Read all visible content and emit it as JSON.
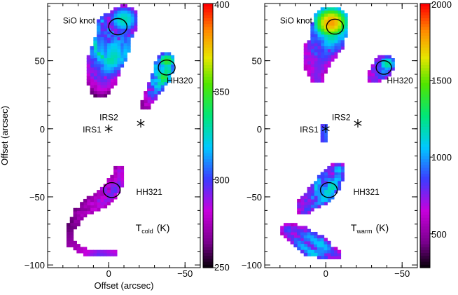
{
  "chart_data": [
    {
      "type": "heatmap",
      "annotation": "T_cold (K)",
      "annotation_main": "T",
      "annotation_sub": "cold",
      "annotation_unit": "(K)",
      "xlabel": "Offset (arcsec)",
      "ylabel": "Offset (arcsec)",
      "x_reversed": true,
      "xlim": [
        40,
        -60
      ],
      "ylim": [
        -102,
        92
      ],
      "x_ticks": [
        0,
        -50
      ],
      "y_ticks": [
        50,
        0,
        -50,
        -100
      ],
      "colorbar": {
        "min": 250,
        "max": 400,
        "ticks": [
          400,
          350,
          300,
          250
        ]
      },
      "labels": [
        {
          "text": "SiO knot",
          "x": 30,
          "y": 80
        },
        {
          "text": "HH320",
          "x": -38,
          "y": 36
        },
        {
          "text": "IRS2",
          "x": 6,
          "y": 9
        },
        {
          "text": "IRS1",
          "x": 17,
          "y": 0
        },
        {
          "text": "HH321",
          "x": -18,
          "y": -46
        }
      ],
      "stars": [
        {
          "name": "IRS1",
          "x": 0,
          "y": 0
        },
        {
          "name": "IRS2",
          "x": -21,
          "y": 4
        }
      ],
      "circles": [
        {
          "x": -6,
          "y": 75,
          "r": 6
        },
        {
          "x": -38,
          "y": 45,
          "r": 5.5
        },
        {
          "x": -2,
          "y": -45,
          "r": 5.5
        }
      ],
      "regions": [
        {
          "name": "SiO knot lobe",
          "spine": [
            [
              -10,
              80
            ],
            [
              -4,
              72
            ],
            [
              -2,
              60
            ],
            [
              2,
              48
            ],
            [
              4,
              36
            ],
            [
              6,
              28
            ]
          ],
          "width": [
            10,
            12,
            12,
            11,
            9,
            5
          ],
          "values": [
            330,
            360,
            380,
            330,
            300,
            270
          ]
        },
        {
          "name": "HH320 jet",
          "spine": [
            [
              -38,
              50
            ],
            [
              -36,
              42
            ],
            [
              -32,
              32
            ],
            [
              -28,
              24
            ],
            [
              -24,
              16
            ]
          ],
          "width": [
            6,
            6,
            5,
            4,
            3
          ],
          "values": [
            350,
            375,
            330,
            300,
            270
          ]
        },
        {
          "name": "HH321 arc",
          "spine": [
            [
              -8,
              -32
            ],
            [
              -4,
              -42
            ],
            [
              2,
              -50
            ],
            [
              10,
              -56
            ],
            [
              18,
              -62
            ],
            [
              24,
              -72
            ],
            [
              24,
              -84
            ],
            [
              18,
              -90
            ],
            [
              8,
              -92
            ],
            [
              -4,
              -92
            ]
          ],
          "width": [
            4,
            5,
            6,
            5,
            4,
            3,
            3,
            3,
            3,
            3
          ],
          "values": [
            290,
            310,
            300,
            290,
            280,
            265,
            275,
            285,
            300,
            290
          ]
        }
      ]
    },
    {
      "type": "heatmap",
      "annotation": "T_warm (K)",
      "annotation_main": "T",
      "annotation_sub": "warm",
      "annotation_unit": "(K)",
      "xlabel": "",
      "ylabel": "",
      "x_reversed": true,
      "xlim": [
        40,
        -60
      ],
      "ylim": [
        -102,
        92
      ],
      "x_ticks": [
        0,
        -50
      ],
      "y_ticks": [
        50,
        0,
        -50,
        -100
      ],
      "colorbar": {
        "min": 280,
        "max": 2000,
        "ticks": [
          2000,
          1500,
          1000,
          500
        ]
      },
      "labels": [
        {
          "text": "SiO knot",
          "x": 30,
          "y": 80
        },
        {
          "text": "HH320",
          "x": -40,
          "y": 36
        },
        {
          "text": "IRS2",
          "x": -4,
          "y": 9
        },
        {
          "text": "IRS1",
          "x": 17,
          "y": 0
        },
        {
          "text": "HH321",
          "x": -18,
          "y": -46
        }
      ],
      "stars": [
        {
          "name": "IRS1",
          "x": 0,
          "y": 0
        },
        {
          "name": "IRS2",
          "x": -21,
          "y": 4
        }
      ],
      "circles": [
        {
          "x": -6,
          "y": 75,
          "r": 5.5
        },
        {
          "x": -38,
          "y": 45,
          "r": 5
        },
        {
          "x": -2,
          "y": -45,
          "r": 5.5
        }
      ],
      "regions": [
        {
          "name": "SiO knot lobe",
          "spine": [
            [
              -4,
              78
            ],
            [
              -2,
              68
            ],
            [
              4,
              56
            ],
            [
              6,
              46
            ],
            [
              6,
              38
            ]
          ],
          "width": [
            12,
            11,
            10,
            7,
            5
          ],
          "values": [
            1800,
            1350,
            1050,
            950,
            900
          ]
        },
        {
          "name": "HH320 knot",
          "spine": [
            [
              -40,
              48
            ],
            [
              -36,
              43
            ],
            [
              -32,
              38
            ]
          ],
          "width": [
            6,
            6,
            5
          ],
          "values": [
            1250,
            1100,
            850
          ]
        },
        {
          "name": "IRS1 blob",
          "spine": [
            [
              0,
              1
            ],
            [
              0,
              -8
            ]
          ],
          "width": [
            3,
            3
          ],
          "values": [
            1000,
            950
          ]
        },
        {
          "name": "HH321 knot",
          "spine": [
            [
              -8,
              -30
            ],
            [
              -4,
              -38
            ],
            [
              2,
              -46
            ],
            [
              8,
              -52
            ],
            [
              14,
              -58
            ]
          ],
          "width": [
            5,
            7,
            8,
            6,
            5
          ],
          "values": [
            1100,
            1550,
            1400,
            1150,
            950
          ]
        },
        {
          "name": "southern blob",
          "spine": [
            [
              24,
              -74
            ],
            [
              16,
              -80
            ],
            [
              8,
              -86
            ],
            [
              0,
              -90
            ],
            [
              -6,
              -92
            ]
          ],
          "width": [
            5,
            7,
            8,
            6,
            4
          ],
          "values": [
            900,
            1300,
            1450,
            1050,
            850
          ]
        }
      ]
    }
  ]
}
